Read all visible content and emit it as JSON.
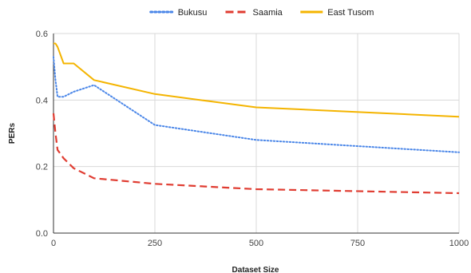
{
  "chart_data": {
    "type": "line",
    "title": "",
    "xlabel": "Dataset Size",
    "ylabel": "PERs",
    "xlim": [
      0,
      1000
    ],
    "ylim": [
      0,
      0.6
    ],
    "xticks": [
      0,
      250,
      500,
      750,
      1000
    ],
    "yticks": [
      0,
      0.2,
      0.4,
      0.6
    ],
    "xtick_labels": [
      "0",
      "250",
      "500",
      "750",
      "1000"
    ],
    "ytick_labels": [
      "0.0",
      "0.2",
      "0.4",
      "0.6"
    ],
    "grid": true,
    "legend_position": "top",
    "series": [
      {
        "name": "Bukusu",
        "color": "#4a86e8",
        "style": "dotted",
        "x": [
          0,
          5,
          10,
          25,
          50,
          100,
          250,
          500,
          1000
        ],
        "y": [
          0.53,
          0.46,
          0.41,
          0.41,
          0.425,
          0.445,
          0.325,
          0.28,
          0.243
        ]
      },
      {
        "name": "Saamia",
        "color": "#e03c31",
        "style": "dashed",
        "x": [
          0,
          5,
          10,
          25,
          50,
          100,
          250,
          500,
          1000
        ],
        "y": [
          0.36,
          0.3,
          0.25,
          0.225,
          0.195,
          0.165,
          0.148,
          0.132,
          0.12
        ]
      },
      {
        "name": "East Tusom",
        "color": "#f4b400",
        "style": "solid",
        "x": [
          0,
          5,
          10,
          25,
          50,
          100,
          250,
          500,
          1000
        ],
        "y": [
          0.57,
          0.57,
          0.56,
          0.51,
          0.51,
          0.46,
          0.418,
          0.378,
          0.35
        ]
      }
    ]
  }
}
